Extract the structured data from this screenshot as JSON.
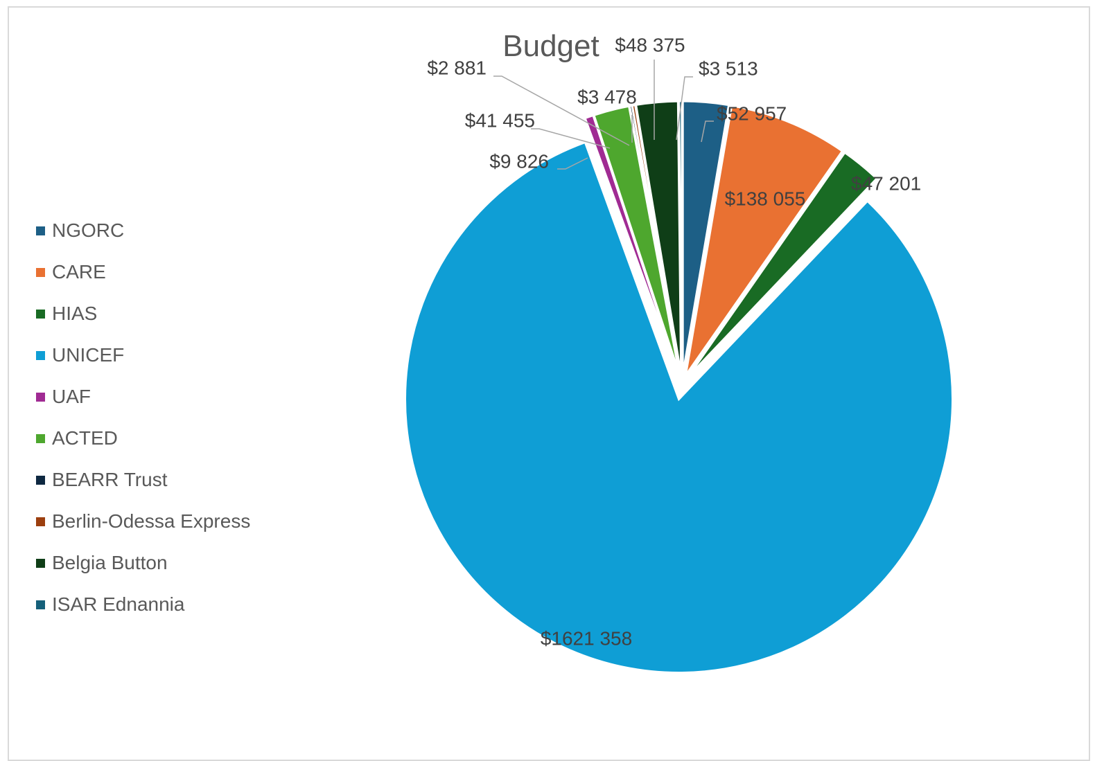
{
  "chart_data": {
    "type": "pie",
    "title": "Budget",
    "legend_position": "left",
    "categories": [
      "NGORC",
      "CARE",
      "HIAS",
      "UNICEF",
      "UAF",
      "ACTED",
      "BEARR Trust",
      "Berlin-Odessa Express",
      "Belgia Button",
      "ISAR Ednannia"
    ],
    "values": [
      52957,
      138055,
      47201,
      1621358,
      9826,
      41455,
      2881,
      3478,
      48375,
      3513
    ],
    "labels": [
      "$52 957",
      "$138 055",
      "$47 201",
      "$1621 358",
      "$9 826",
      "$41 455",
      "$2 881",
      "$3 478",
      "$48 375",
      "$3 513"
    ],
    "colors": [
      "#1d5f86",
      "#e97132",
      "#196b24",
      "#0f9ed5",
      "#a02b93",
      "#4ea72e",
      "#0e2841",
      "#9c3f0f",
      "#0f3e17",
      "#15607a"
    ]
  }
}
